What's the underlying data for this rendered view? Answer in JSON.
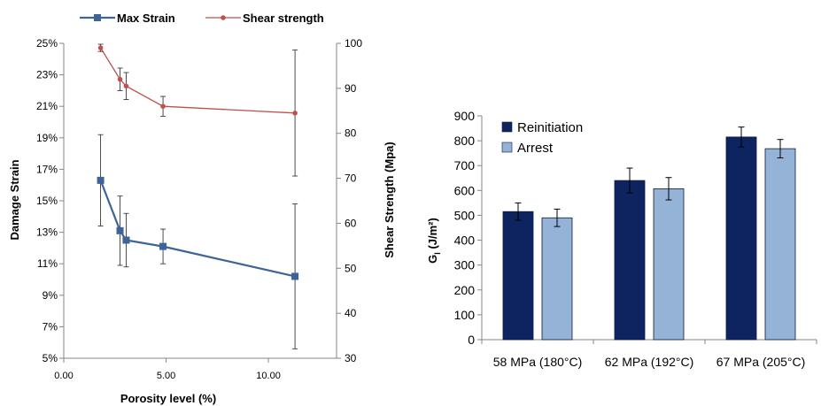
{
  "chart_data": [
    {
      "type": "line",
      "xlabel": "Porosity level (%)",
      "ylabel_left": "Damage Strain",
      "ylabel_right": "Shear Strength (Mpa)",
      "xlim": [
        0,
        13.33
      ],
      "ylim_left": [
        0.05,
        0.25
      ],
      "ylim_right": [
        30,
        100
      ],
      "x_ticks": [
        0,
        5,
        10
      ],
      "x_tick_labels": [
        "0.00",
        "5.00",
        "10.00"
      ],
      "y_left_ticks": [
        0.05,
        0.07,
        0.09,
        0.11,
        0.13,
        0.15,
        0.17,
        0.19,
        0.21,
        0.23,
        0.25
      ],
      "y_left_tick_labels": [
        "5%",
        "7%",
        "9%",
        "11%",
        "13%",
        "15%",
        "17%",
        "19%",
        "21%",
        "23%",
        "25%"
      ],
      "y_right_ticks": [
        30,
        40,
        50,
        60,
        70,
        80,
        90,
        100
      ],
      "y_right_tick_labels": [
        "30",
        "40",
        "50",
        "60",
        "70",
        "80",
        "90",
        "100"
      ],
      "legend_position": "top",
      "series": [
        {
          "name": "Max Strain",
          "axis": "left",
          "color": "#3c6499",
          "marker": "square",
          "x": [
            1.8,
            2.75,
            3.05,
            4.85,
            11.3
          ],
          "y": [
            0.163,
            0.131,
            0.125,
            0.121,
            0.102
          ],
          "err": [
            0.029,
            0.022,
            0.017,
            0.011,
            0.046
          ]
        },
        {
          "name": "Shear strength",
          "axis": "right",
          "color": "#c0504d",
          "marker": "circle",
          "x": [
            1.8,
            2.75,
            3.05,
            4.85,
            11.3
          ],
          "y": [
            99,
            92,
            90.5,
            86,
            84.5
          ],
          "err": [
            0.8,
            2.5,
            3,
            2.2,
            14
          ]
        }
      ]
    },
    {
      "type": "bar",
      "ylabel": "G",
      "ylabel_sub": "I",
      "ylabel_unit": " (J/m²)",
      "ylim": [
        0,
        900
      ],
      "y_ticks": [
        0,
        100,
        200,
        300,
        400,
        500,
        600,
        700,
        800,
        900
      ],
      "categories": [
        "58 MPa (180°C)",
        "62 MPa (192°C)",
        "67 MPa (205°C)"
      ],
      "legend_position": "top-left",
      "series": [
        {
          "name": "Reinitiation",
          "color": "#0e2461",
          "values": [
            515,
            640,
            815
          ],
          "err": [
            35,
            50,
            40
          ]
        },
        {
          "name": "Arrest",
          "color": "#95b3d7",
          "values": [
            490,
            607,
            768
          ],
          "err": [
            35,
            45,
            37
          ]
        }
      ]
    }
  ]
}
